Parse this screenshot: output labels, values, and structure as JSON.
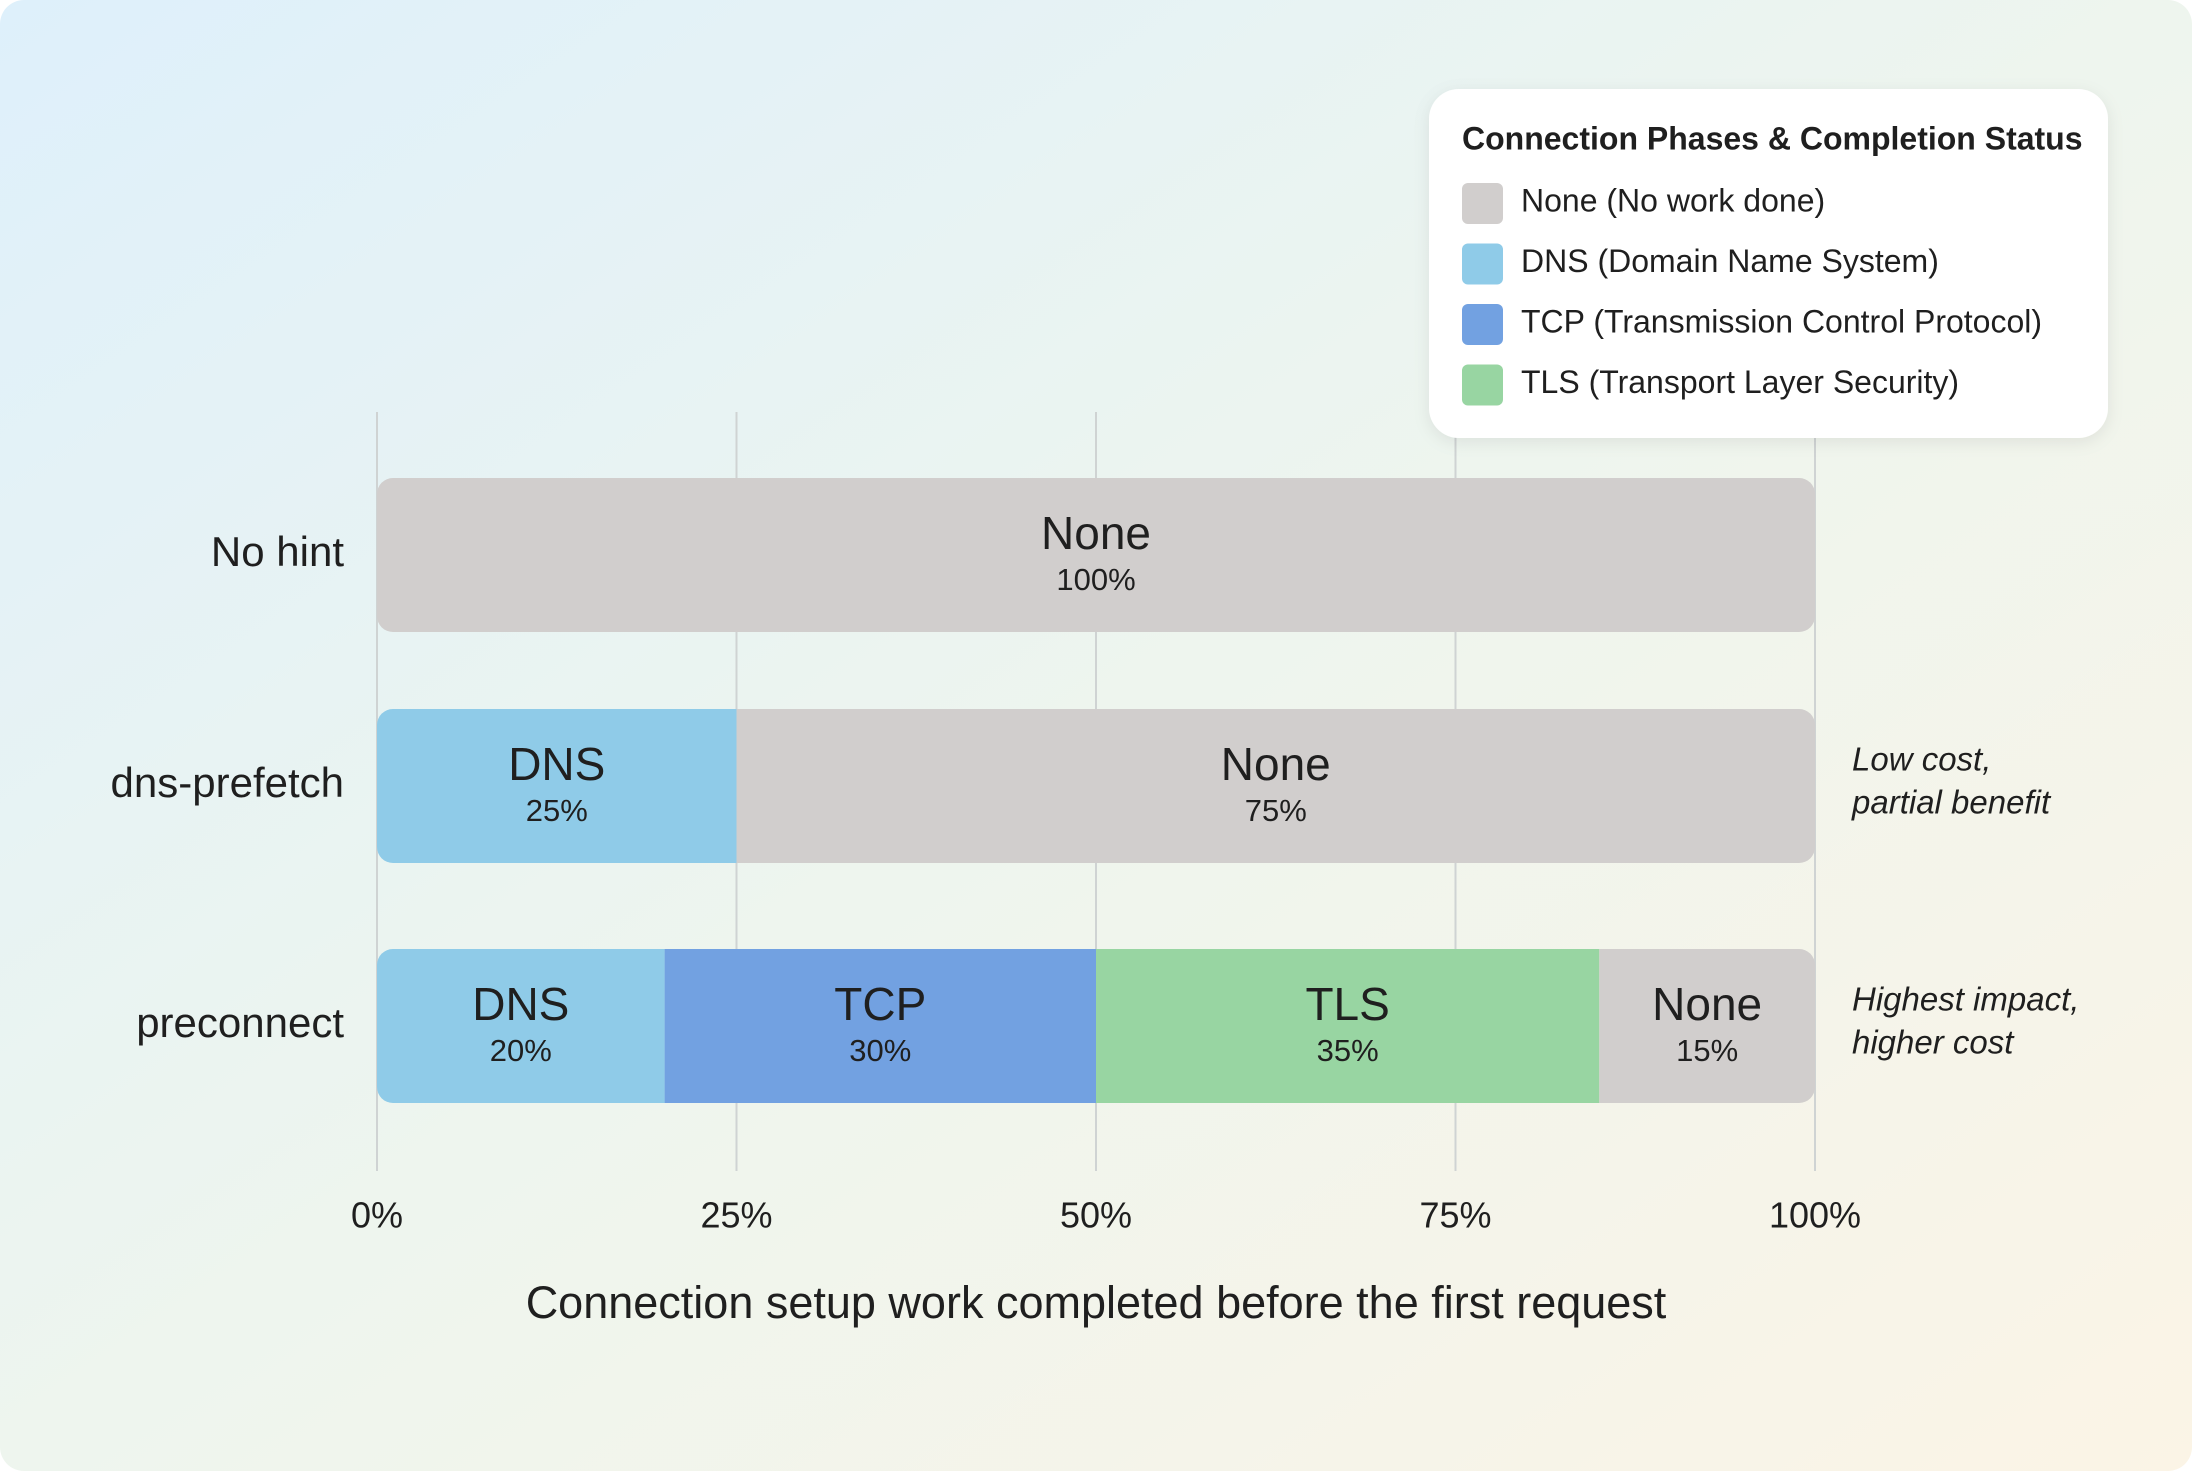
{
  "chart_data": {
    "type": "stacked-bar-horizontal",
    "categories": [
      "No hint",
      "dns-prefetch",
      "preconnect"
    ],
    "series": [
      {
        "name": "None (No work done)",
        "label": "None",
        "color": "#d1cecd",
        "values": [
          100,
          75,
          15
        ],
        "value_labels": [
          "100%",
          "75%",
          "15%"
        ]
      },
      {
        "name": "DNS (Domain Name System)",
        "label": "DNS",
        "color": "#8fcbe8",
        "values": [
          null,
          25,
          20
        ],
        "value_labels": [
          null,
          "25%",
          "20%"
        ]
      },
      {
        "name": "TCP (Transmission Control Protocol)",
        "label": "TCP",
        "color": "#72a1e1",
        "values": [
          null,
          null,
          30
        ],
        "value_labels": [
          null,
          null,
          "30%"
        ]
      },
      {
        "name": "TLS (Transport Layer Security)",
        "label": "TLS",
        "color": "#98d5a2",
        "values": [
          null,
          null,
          35
        ],
        "value_labels": [
          null,
          null,
          "35%"
        ]
      }
    ],
    "stack_order": [
      1,
      2,
      3,
      0
    ],
    "xlim": [
      0,
      100
    ],
    "xticks": [
      {
        "value": 0,
        "label": "0%"
      },
      {
        "value": 25,
        "label": "25%"
      },
      {
        "value": 50,
        "label": "50%"
      },
      {
        "value": 75,
        "label": "75%"
      },
      {
        "value": 100,
        "label": "100%"
      }
    ],
    "xlabel": "Connection setup work completed before the first request",
    "legend_title": "Connection Phases & Completion Status",
    "legend": "upper right",
    "grid": true,
    "annotations": [
      null,
      [
        "Low cost,",
        "partial benefit"
      ],
      [
        "Highest impact,",
        "higher cost"
      ]
    ]
  }
}
